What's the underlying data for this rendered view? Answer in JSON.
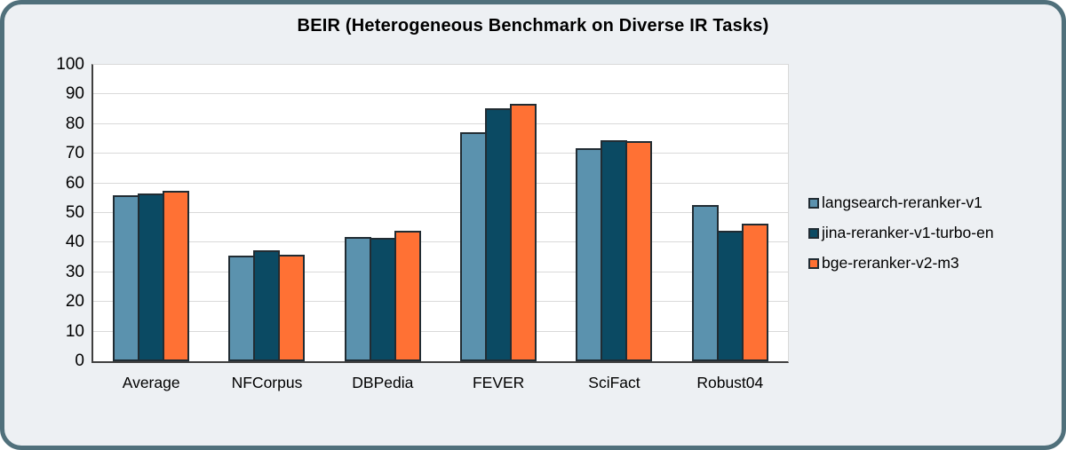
{
  "chart_data": {
    "type": "bar",
    "title": "BEIR (Heterogeneous Benchmark on Diverse IR Tasks)",
    "categories": [
      "Average",
      "NFCorpus",
      "DBPedia",
      "FEVER",
      "SciFact",
      "Robust04"
    ],
    "series": [
      {
        "name": "langsearch-reranker-v1",
        "color": "#5b92ae",
        "values": [
          55.9,
          35.5,
          42.0,
          77.3,
          71.9,
          52.6
        ]
      },
      {
        "name": "jina-reranker-v1-turbo-en",
        "color": "#0b4a63",
        "values": [
          56.5,
          37.3,
          41.6,
          85.2,
          74.6,
          44.0
        ]
      },
      {
        "name": "bge-reranker-v2-m3",
        "color": "#ff7134",
        "values": [
          57.5,
          35.9,
          44.0,
          86.7,
          74.4,
          46.3
        ]
      }
    ],
    "xlabel": "",
    "ylabel": "",
    "ylim": [
      0,
      100
    ],
    "yticks": [
      0,
      10,
      20,
      30,
      40,
      50,
      60,
      70,
      80,
      90,
      100
    ],
    "grid": true,
    "legend_position": "right"
  },
  "colors": {
    "card_background": "#edf0f3",
    "card_border": "#50707b",
    "plot_background": "#ffffff",
    "gridline": "#d9d9d9",
    "axis_line": "#3f3f3f",
    "bar_border": "#212c33",
    "text": "#000000"
  }
}
